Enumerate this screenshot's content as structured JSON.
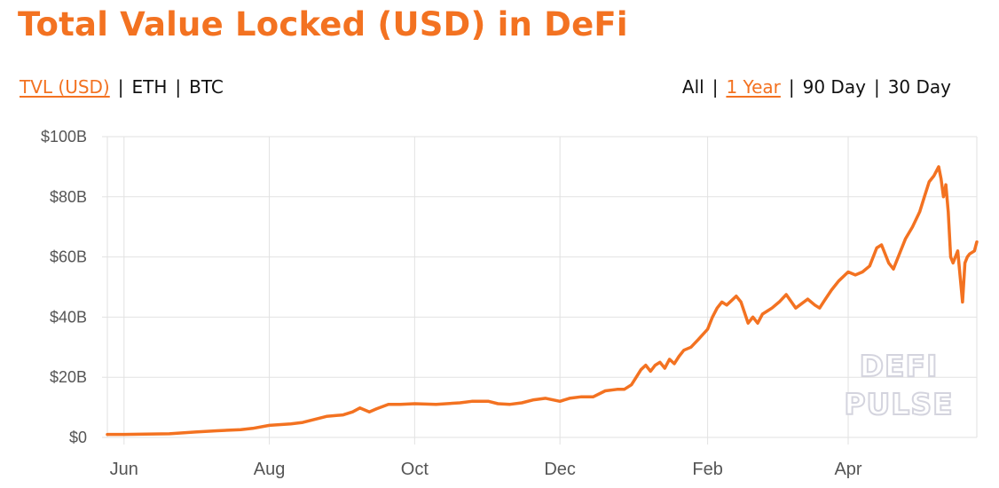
{
  "header": {
    "title": "Total Value Locked (USD) in DeFi"
  },
  "metric_toggle": {
    "options": [
      "TVL (USD)",
      "ETH",
      "BTC"
    ],
    "active": "TVL (USD)",
    "separator": "|"
  },
  "range_toggle": {
    "options": [
      "All",
      "1 Year",
      "90 Day",
      "30 Day"
    ],
    "active": "1 Year",
    "separator": "|"
  },
  "colors": {
    "accent": "#f37221",
    "grid": "#e2e2e2",
    "axis_text": "#555555",
    "watermark_outline": "#d4d4de"
  },
  "watermark": {
    "line1": "DEFI",
    "line2": "PULSE"
  },
  "chart_data": {
    "type": "line",
    "title": "Total Value Locked (USD) in DeFi",
    "xlabel": "",
    "ylabel": "",
    "ylim": [
      0,
      100
    ],
    "y_unit": "USD billions",
    "y_ticks": [
      0,
      20,
      40,
      60,
      80,
      100
    ],
    "y_tick_labels": [
      "$0",
      "$20B",
      "$40B",
      "$60B",
      "$80B",
      "$100B"
    ],
    "x_range": [
      "2020-05-25",
      "2021-05-25"
    ],
    "x_ticks": [
      "2020-06-01",
      "2020-08-01",
      "2020-10-01",
      "2020-12-01",
      "2021-02-01",
      "2021-04-01"
    ],
    "x_tick_labels": [
      "Jun",
      "Aug",
      "Oct",
      "Dec",
      "Feb",
      "Apr"
    ],
    "grid": true,
    "legend": "none",
    "series": [
      {
        "color": "#f37221",
        "x": [
          "2020-05-25",
          "2020-06-01",
          "2020-06-10",
          "2020-06-20",
          "2020-07-01",
          "2020-07-10",
          "2020-07-20",
          "2020-07-25",
          "2020-08-01",
          "2020-08-10",
          "2020-08-15",
          "2020-08-20",
          "2020-08-25",
          "2020-09-01",
          "2020-09-05",
          "2020-09-08",
          "2020-09-12",
          "2020-09-15",
          "2020-09-20",
          "2020-09-25",
          "2020-10-01",
          "2020-10-10",
          "2020-10-20",
          "2020-10-25",
          "2020-11-01",
          "2020-11-05",
          "2020-11-10",
          "2020-11-15",
          "2020-11-20",
          "2020-11-25",
          "2020-12-01",
          "2020-12-05",
          "2020-12-10",
          "2020-12-15",
          "2020-12-20",
          "2020-12-25",
          "2020-12-28",
          "2020-12-31",
          "2021-01-02",
          "2021-01-04",
          "2021-01-06",
          "2021-01-08",
          "2021-01-10",
          "2021-01-12",
          "2021-01-14",
          "2021-01-16",
          "2021-01-18",
          "2021-01-20",
          "2021-01-22",
          "2021-01-25",
          "2021-01-28",
          "2021-02-01",
          "2021-02-03",
          "2021-02-05",
          "2021-02-07",
          "2021-02-09",
          "2021-02-11",
          "2021-02-13",
          "2021-02-15",
          "2021-02-18",
          "2021-02-20",
          "2021-02-22",
          "2021-02-24",
          "2021-02-26",
          "2021-02-28",
          "2021-03-03",
          "2021-03-06",
          "2021-03-10",
          "2021-03-15",
          "2021-03-18",
          "2021-03-20",
          "2021-03-22",
          "2021-03-25",
          "2021-03-28",
          "2021-04-01",
          "2021-04-04",
          "2021-04-07",
          "2021-04-10",
          "2021-04-13",
          "2021-04-15",
          "2021-04-18",
          "2021-04-20",
          "2021-04-23",
          "2021-04-25",
          "2021-04-28",
          "2021-05-01",
          "2021-05-03",
          "2021-05-05",
          "2021-05-07",
          "2021-05-09",
          "2021-05-10",
          "2021-05-11",
          "2021-05-12",
          "2021-05-13",
          "2021-05-14",
          "2021-05-15",
          "2021-05-17",
          "2021-05-19",
          "2021-05-20",
          "2021-05-21",
          "2021-05-22",
          "2021-05-24",
          "2021-05-25"
        ],
        "values": [
          1.0,
          1.0,
          1.1,
          1.2,
          1.8,
          2.2,
          2.6,
          3.0,
          4.0,
          4.5,
          5.0,
          6.0,
          7.0,
          7.5,
          8.5,
          9.8,
          8.5,
          9.5,
          11.0,
          11.0,
          11.2,
          11.0,
          11.5,
          12.0,
          12.0,
          11.2,
          11.0,
          11.5,
          12.5,
          13.0,
          12.0,
          13.0,
          13.5,
          13.5,
          15.5,
          16.0,
          16.0,
          17.5,
          20.0,
          22.5,
          24.0,
          22.0,
          24.0,
          25.0,
          23.0,
          26.0,
          24.5,
          27.0,
          29.0,
          30.0,
          32.5,
          36.0,
          40.0,
          43.0,
          45.0,
          44.0,
          45.5,
          47.0,
          45.0,
          38.0,
          40.0,
          38.0,
          41.0,
          42.0,
          43.0,
          45.0,
          47.5,
          43.0,
          46.0,
          44.0,
          43.0,
          45.5,
          49.0,
          52.0,
          55.0,
          54.0,
          55.0,
          57.0,
          63.0,
          64.0,
          58.0,
          56.0,
          62.0,
          66.0,
          70.0,
          75.0,
          80.0,
          85.0,
          87.0,
          90.0,
          86.0,
          80.0,
          84.0,
          75.0,
          60.0,
          58.0,
          62.0,
          45.0,
          58.0,
          60.0,
          61.0,
          62.0,
          65.0
        ]
      }
    ]
  }
}
